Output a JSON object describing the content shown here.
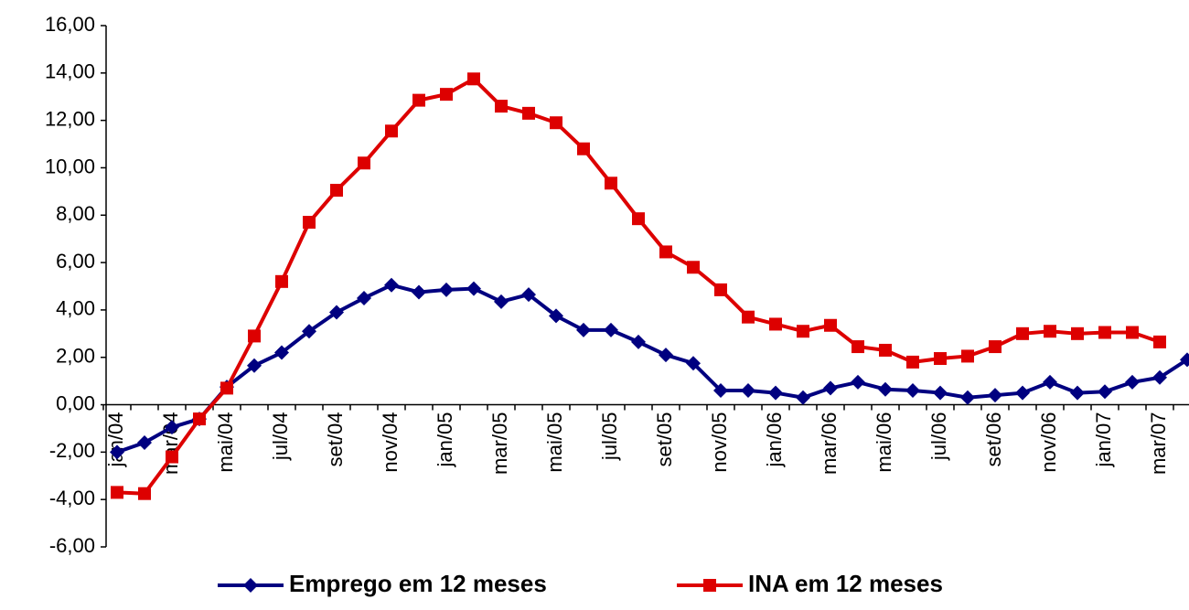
{
  "chart_data": {
    "type": "line",
    "categories": [
      "jan/04",
      null,
      "mar/04",
      null,
      "mai/04",
      null,
      "jul/04",
      null,
      "set/04",
      null,
      "nov/04",
      null,
      "jan/05",
      null,
      "mar/05",
      null,
      "mai/05",
      null,
      "jul/05",
      null,
      "set/05",
      null,
      "nov/05",
      null,
      "jan/06",
      null,
      "mar/06",
      null,
      "mai/06",
      null,
      "jul/06",
      null,
      "set/06",
      null,
      "nov/06",
      null,
      "jan/07",
      null,
      "mar/07",
      null
    ],
    "series": [
      {
        "name": "Emprego em 12 meses",
        "color": "#000080",
        "marker": "diamond",
        "values": [
          -2.0,
          -1.6,
          -0.95,
          -0.6,
          0.75,
          1.65,
          2.2,
          3.1,
          3.9,
          4.5,
          5.05,
          4.75,
          4.85,
          4.9,
          4.35,
          4.65,
          3.75,
          3.15,
          3.15,
          2.65,
          2.1,
          1.75,
          0.6,
          0.6,
          0.5,
          0.3,
          0.7,
          0.95,
          0.65,
          0.6,
          0.5,
          0.3,
          0.4,
          0.5,
          0.95,
          0.5,
          0.55,
          0.95,
          1.15,
          1.9
        ]
      },
      {
        "name": "INA em 12 meses",
        "color": "#dd0000",
        "marker": "square",
        "values": [
          -3.7,
          -3.75,
          -2.2,
          -0.6,
          0.7,
          2.9,
          5.2,
          7.7,
          9.05,
          10.2,
          11.55,
          12.85,
          13.1,
          13.75,
          12.6,
          12.3,
          11.9,
          10.8,
          9.35,
          7.85,
          6.45,
          5.8,
          4.85,
          3.7,
          3.4,
          3.1,
          3.35,
          2.45,
          2.3,
          1.8,
          1.95,
          2.05,
          2.45,
          3.0,
          3.1,
          3.0,
          3.05,
          3.05,
          2.65,
          null
        ]
      }
    ],
    "ylim": [
      -6,
      16
    ],
    "yticks": [
      {
        "value": -6,
        "label": "-6,00"
      },
      {
        "value": -4,
        "label": "-4,00"
      },
      {
        "value": -2,
        "label": "-2,00"
      },
      {
        "value": 0,
        "label": "0,00"
      },
      {
        "value": 2,
        "label": "2,00"
      },
      {
        "value": 4,
        "label": "4,00"
      },
      {
        "value": 6,
        "label": "6,00"
      },
      {
        "value": 8,
        "label": "8,00"
      },
      {
        "value": 10,
        "label": "10,00"
      },
      {
        "value": 12,
        "label": "12,00"
      },
      {
        "value": 14,
        "label": "14,00"
      },
      {
        "value": 16,
        "label": "16,00"
      }
    ],
    "grid": false,
    "legend": "bottom"
  }
}
